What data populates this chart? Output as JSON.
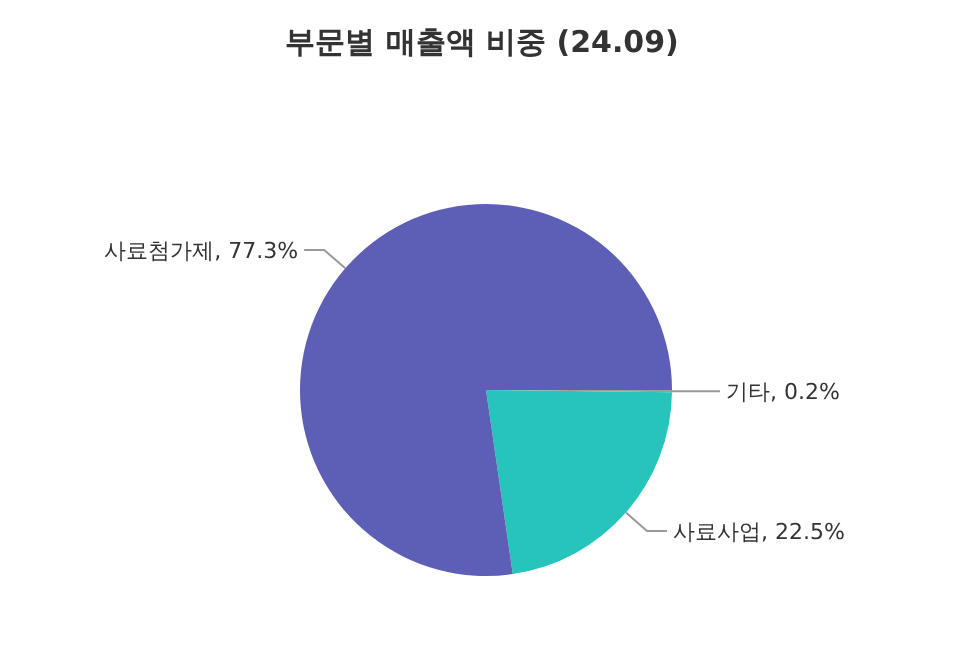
{
  "chart_data": {
    "type": "pie",
    "title": "부문별 매출액 비중 (24.09)",
    "categories": [
      "기타",
      "사료사업",
      "사료첨가제"
    ],
    "values": [
      0.2,
      22.5,
      77.3
    ],
    "value_labels": [
      ", 0.2%",
      ", 22.5%",
      ", 77.3%"
    ],
    "colors": [
      "#9e9e9e",
      "#26c4bb",
      "#5c5fb5"
    ]
  }
}
